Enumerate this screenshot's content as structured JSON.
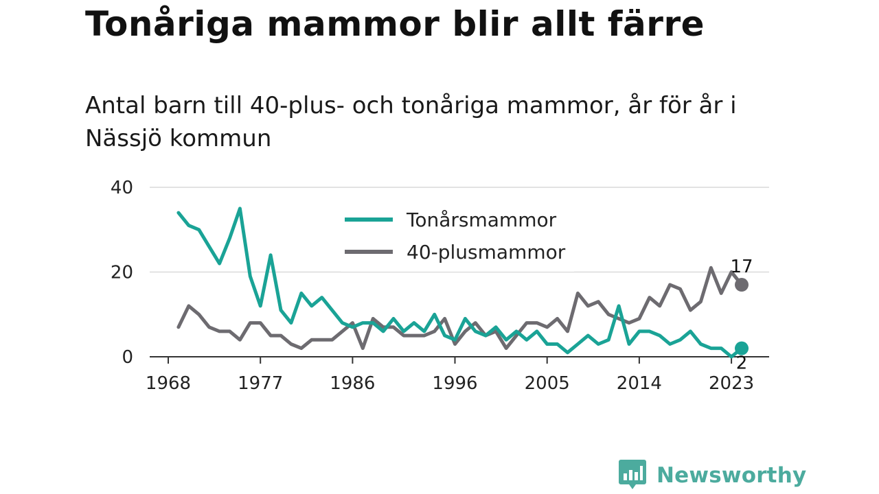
{
  "header": {
    "title": "Tonåriga mammor blir allt färre",
    "subtitle": "Antal barn till 40-plus- och tonåriga mammor, år för år i Nässjö kommun"
  },
  "brand": {
    "name": "Newsworthy",
    "icon": "newsworthy-logo-icon",
    "color": "#4cab9e"
  },
  "chart_data": {
    "type": "line",
    "x": [
      1969,
      1970,
      1971,
      1972,
      1973,
      1974,
      1975,
      1976,
      1977,
      1978,
      1979,
      1980,
      1981,
      1982,
      1983,
      1984,
      1985,
      1986,
      1987,
      1988,
      1989,
      1990,
      1991,
      1992,
      1993,
      1994,
      1995,
      1996,
      1997,
      1998,
      1999,
      2000,
      2001,
      2002,
      2003,
      2004,
      2005,
      2006,
      2007,
      2008,
      2009,
      2010,
      2011,
      2012,
      2013,
      2014,
      2015,
      2016,
      2017,
      2018,
      2019,
      2020,
      2021,
      2022,
      2023,
      2024
    ],
    "series": [
      {
        "name": "Tonårsmammor",
        "color": "#1aa396",
        "values": [
          34,
          31,
          30,
          26,
          22,
          28,
          35,
          19,
          12,
          24,
          11,
          8,
          15,
          12,
          14,
          11,
          8,
          7,
          8,
          8,
          6,
          9,
          6,
          8,
          6,
          10,
          5,
          4,
          9,
          6,
          5,
          7,
          4,
          6,
          4,
          6,
          3,
          3,
          1,
          3,
          5,
          3,
          4,
          12,
          3,
          6,
          6,
          5,
          3,
          4,
          6,
          3,
          2,
          2,
          0,
          2
        ]
      },
      {
        "name": "40-plusmammor",
        "color": "#6d6b70",
        "values": [
          7,
          12,
          10,
          7,
          6,
          6,
          4,
          8,
          8,
          5,
          5,
          3,
          2,
          4,
          4,
          4,
          6,
          8,
          2,
          9,
          7,
          7,
          5,
          5,
          5,
          6,
          9,
          3,
          6,
          8,
          5,
          6,
          2,
          5,
          8,
          8,
          7,
          9,
          6,
          15,
          12,
          13,
          10,
          9,
          8,
          9,
          14,
          12,
          17,
          16,
          11,
          13,
          21,
          15,
          20,
          17
        ]
      }
    ],
    "x_ticks": [
      1968,
      1977,
      1986,
      1996,
      2005,
      2014,
      2023
    ],
    "x_tick_labels": [
      "1968",
      "1977",
      "1986",
      "1996",
      "2005",
      "2014",
      "2023"
    ],
    "y_ticks": [
      0,
      20,
      40
    ],
    "y_tick_labels": [
      "0",
      "20",
      "40"
    ],
    "xlim": [
      1968,
      2025
    ],
    "ylim": [
      0,
      40
    ],
    "grid": "horizontal",
    "legend": "top-center",
    "end_labels": [
      {
        "series": "40-plusmammor",
        "value": 17,
        "text": "17"
      },
      {
        "series": "Tonårsmammor",
        "value": 2,
        "text": "2"
      }
    ],
    "xlabel": "",
    "ylabel": ""
  }
}
